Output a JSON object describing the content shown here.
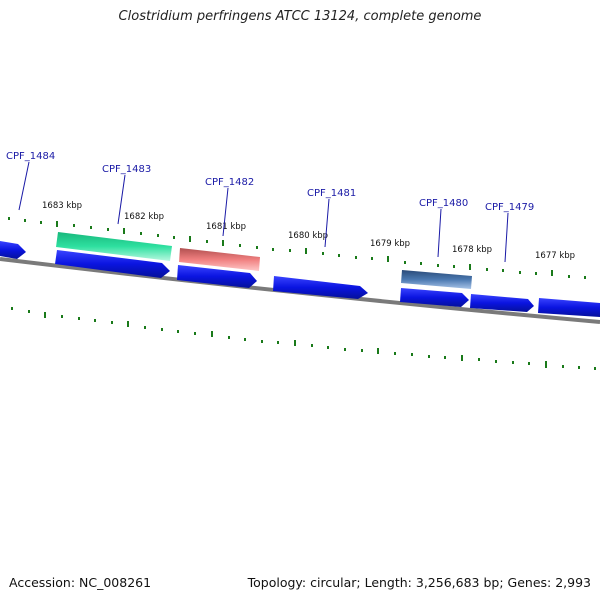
{
  "title": "Clostridium perfringens ATCC 13124, complete genome",
  "footer": {
    "accession": "Accession: NC_008261",
    "summary": "Topology: circular; Length: 3,256,683 bp; Genes: 2,993"
  },
  "colors": {
    "gene_blue": "#0a14e0",
    "highlight_green": "#2ee0a0",
    "highlight_red": "#f07f7f",
    "highlight_steel": "#4a78b0",
    "backbone": "#7a7a7a",
    "tick_green": "#1a7a1a",
    "label_blue": "#1a1aa6"
  },
  "gene_labels": [
    "CPF_1484",
    "CPF_1483",
    "CPF_1482",
    "CPF_1481",
    "CPF_1480",
    "CPF_1479"
  ],
  "kbp_labels": [
    "1683 kbp",
    "1682 kbp",
    "1681 kbp",
    "1680 kbp",
    "1679 kbp",
    "1678 kbp",
    "1677 kbp"
  ]
}
